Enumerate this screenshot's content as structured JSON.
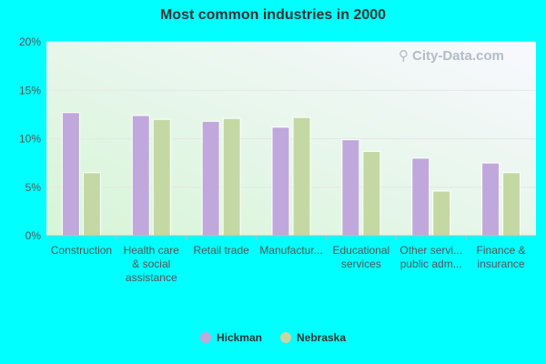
{
  "chart_data": {
    "type": "bar",
    "title": "Most common industries in 2000",
    "categories": [
      [
        "Construction"
      ],
      [
        "Health care",
        "& social",
        "assistance"
      ],
      [
        "Retail trade"
      ],
      [
        "Manufactur..."
      ],
      [
        "Educational",
        "services"
      ],
      [
        "Other servi...",
        "public adm..."
      ],
      [
        "Finance &",
        "insurance"
      ]
    ],
    "series": [
      {
        "name": "Hickman",
        "color": "#c0a8dc",
        "values": [
          12.7,
          12.4,
          11.8,
          11.2,
          9.9,
          8.0,
          7.5
        ]
      },
      {
        "name": "Nebraska",
        "color": "#c4d8a4",
        "values": [
          6.5,
          12.0,
          12.1,
          12.2,
          8.7,
          4.6,
          6.5
        ]
      }
    ],
    "ylim": [
      0,
      20
    ],
    "yticks": [
      0,
      5,
      10,
      15,
      20
    ],
    "ytick_labels": [
      "0%",
      "5%",
      "10%",
      "15%",
      "20%"
    ],
    "legend_position": "bottom"
  },
  "watermark": "City-Data.com"
}
